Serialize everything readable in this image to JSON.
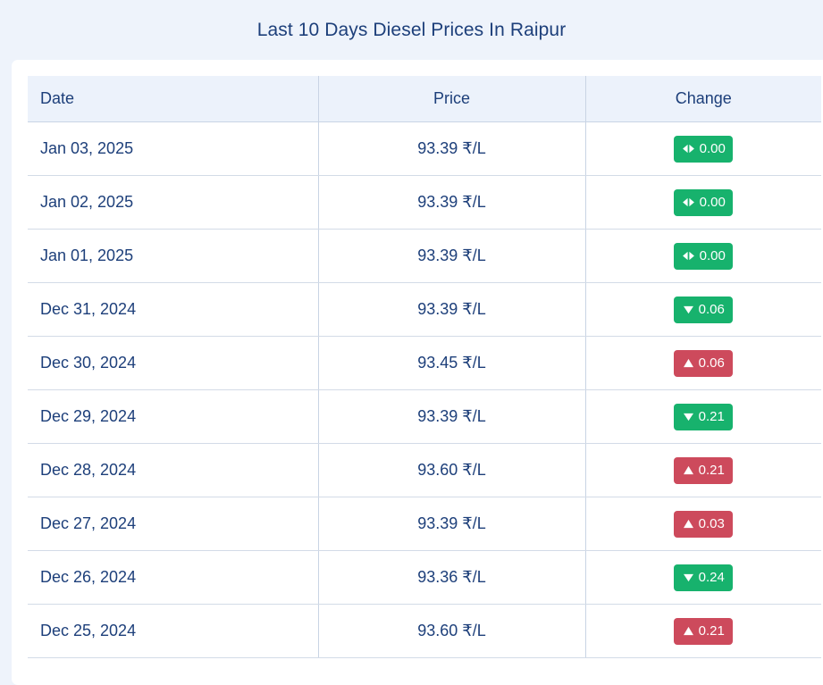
{
  "page": {
    "title": "Last 10 Days Diesel Prices In Raipur"
  },
  "table": {
    "headers": {
      "date": "Date",
      "price": "Price",
      "change": "Change"
    },
    "rows": [
      {
        "date": "Jan 03, 2025",
        "price": "93.39 ₹/L",
        "change": "0.00",
        "direction": "same"
      },
      {
        "date": "Jan 02, 2025",
        "price": "93.39 ₹/L",
        "change": "0.00",
        "direction": "same"
      },
      {
        "date": "Jan 01, 2025",
        "price": "93.39 ₹/L",
        "change": "0.00",
        "direction": "same"
      },
      {
        "date": "Dec 31, 2024",
        "price": "93.39 ₹/L",
        "change": "0.06",
        "direction": "down"
      },
      {
        "date": "Dec 30, 2024",
        "price": "93.45 ₹/L",
        "change": "0.06",
        "direction": "up"
      },
      {
        "date": "Dec 29, 2024",
        "price": "93.39 ₹/L",
        "change": "0.21",
        "direction": "down"
      },
      {
        "date": "Dec 28, 2024",
        "price": "93.60 ₹/L",
        "change": "0.21",
        "direction": "up"
      },
      {
        "date": "Dec 27, 2024",
        "price": "93.39 ₹/L",
        "change": "0.03",
        "direction": "up"
      },
      {
        "date": "Dec 26, 2024",
        "price": "93.36 ₹/L",
        "change": "0.24",
        "direction": "down"
      },
      {
        "date": "Dec 25, 2024",
        "price": "93.60 ₹/L",
        "change": "0.21",
        "direction": "up"
      }
    ]
  },
  "colors": {
    "text": "#1d3f7a",
    "badge_same": "#17b26d",
    "badge_down": "#17b26d",
    "badge_up": "#cd4a5c"
  },
  "icons": {
    "same": "left-right-arrows-icon",
    "down": "triangle-down-icon",
    "up": "triangle-up-icon"
  }
}
